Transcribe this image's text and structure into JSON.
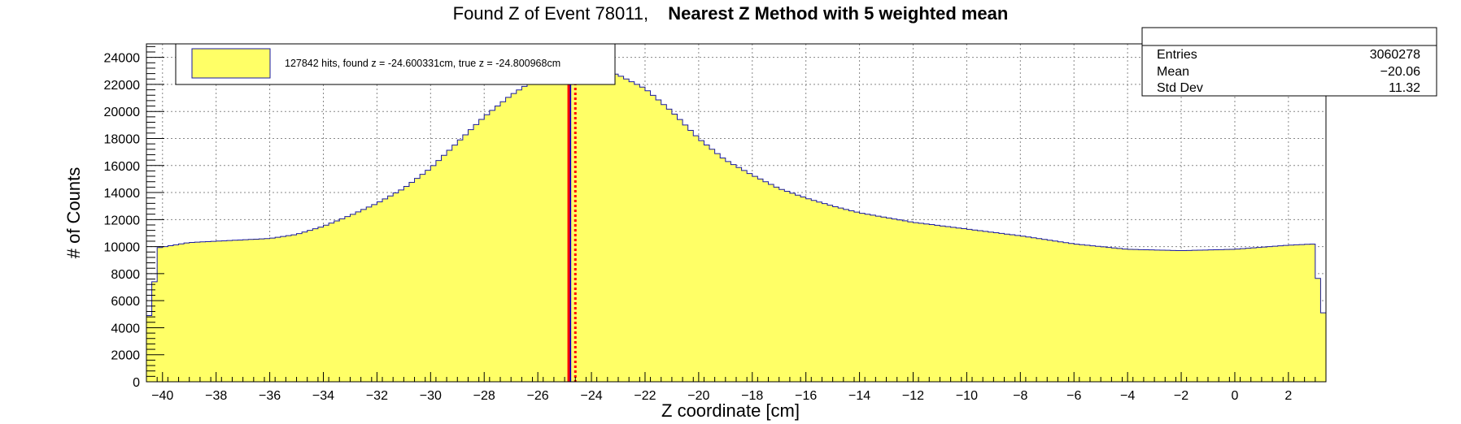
{
  "chart_data": {
    "type": "bar",
    "title": {
      "prefix": "Found Z of Event 78011,",
      "method": "Nearest Z Method with 5 weighted mean"
    },
    "xlabel": "Z coordinate [cm]",
    "ylabel": "# of Counts",
    "xlim": [
      -40.6,
      3.4
    ],
    "ylim": [
      0,
      25000
    ],
    "xticks": [
      -40,
      -38,
      -36,
      -34,
      -32,
      -30,
      -28,
      -26,
      -24,
      -22,
      -20,
      -18,
      -16,
      -14,
      -12,
      -10,
      -8,
      -6,
      -4,
      -2,
      0,
      2
    ],
    "yticks": [
      0,
      2000,
      4000,
      6000,
      8000,
      10000,
      12000,
      14000,
      16000,
      18000,
      20000,
      22000,
      24000
    ],
    "grid": true,
    "bin_width": 0.2,
    "bins_low_edge": -40.6,
    "series": [
      {
        "name": "127842 hits, found z = -24.600331cm, true z = -24.800968cm",
        "fill": "#ffff66",
        "stroke": "#1a1aa0",
        "profile": [
          [
            -40.6,
            4900
          ],
          [
            -40.4,
            4900
          ],
          [
            -40.2,
            9900
          ],
          [
            -39,
            10300
          ],
          [
            -37,
            10500
          ],
          [
            -36,
            10600
          ],
          [
            -35,
            10900
          ],
          [
            -34,
            11500
          ],
          [
            -33,
            12300
          ],
          [
            -32,
            13200
          ],
          [
            -31,
            14300
          ],
          [
            -30,
            15800
          ],
          [
            -29,
            17700
          ],
          [
            -28,
            19600
          ],
          [
            -27,
            21200
          ],
          [
            -26,
            22500
          ],
          [
            -25.5,
            23000
          ],
          [
            -24.5,
            23100
          ],
          [
            -23.5,
            23000
          ],
          [
            -23,
            22700
          ],
          [
            -22,
            21700
          ],
          [
            -21,
            20000
          ],
          [
            -20,
            18000
          ],
          [
            -19,
            16400
          ],
          [
            -18,
            15300
          ],
          [
            -17,
            14300
          ],
          [
            -16,
            13600
          ],
          [
            -15,
            13000
          ],
          [
            -14,
            12500
          ],
          [
            -12,
            11800
          ],
          [
            -10,
            11300
          ],
          [
            -8,
            10800
          ],
          [
            -6,
            10200
          ],
          [
            -4,
            9800
          ],
          [
            -2,
            9700
          ],
          [
            0,
            9800
          ],
          [
            2,
            10100
          ],
          [
            3.0,
            10200
          ],
          [
            3.2,
            5100
          ]
        ]
      }
    ],
    "markers": [
      {
        "name": "true z",
        "x": -24.800968,
        "color": "#0000cc",
        "style": "solid"
      },
      {
        "name": "found z",
        "x": -24.600331,
        "color": "#ff0000",
        "style": "dotted"
      },
      {
        "name": "found z marker 2",
        "x": -24.85,
        "color": "#ff0000",
        "style": "solid"
      }
    ],
    "legend": {
      "placement": "top-left",
      "label": "127842 hits, found z = -24.600331cm, true z = -24.800968cm"
    },
    "stats": {
      "placement": "top-right",
      "rows": [
        {
          "label": "Entries",
          "value": "3060278"
        },
        {
          "label": "Mean",
          "value": "−20.06"
        },
        {
          "label": "Std Dev",
          "value": "11.32"
        }
      ]
    }
  }
}
